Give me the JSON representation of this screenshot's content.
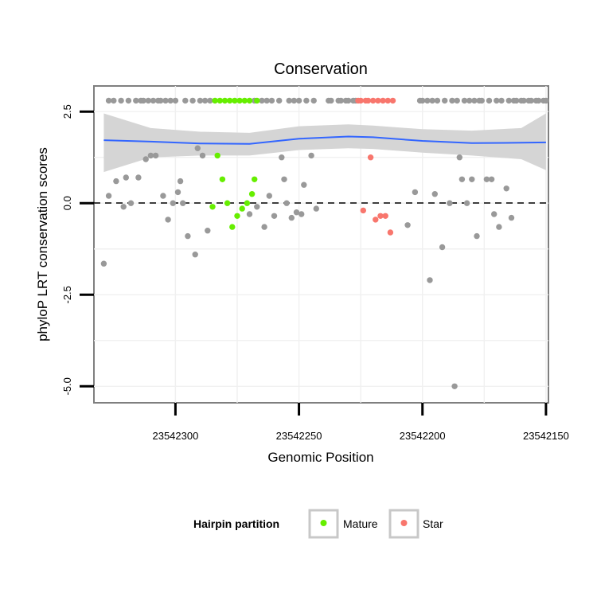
{
  "chart_data": {
    "type": "scatter",
    "title": "Conservation",
    "xlabel": "Genomic Position",
    "ylabel": "phyloP LRT conservation scores",
    "x_reversed": true,
    "xlim": [
      23542333,
      23542149
    ],
    "ylim": [
      -5.45,
      3.2
    ],
    "x_ticks": [
      23542300,
      23542250,
      23542200,
      23542150
    ],
    "x_tick_labels": [
      "23542300",
      "23542250",
      "23542200",
      "23542150"
    ],
    "y_ticks": [
      -5.0,
      -2.5,
      0.0,
      2.5
    ],
    "y_tick_labels": [
      "-5.0",
      "-2.5",
      "0.0",
      "2.5"
    ],
    "reference_line": {
      "y": 0,
      "style": "dashed"
    },
    "grid": true,
    "legend": {
      "title": "Hairpin partition",
      "placement": "bottom",
      "entries": [
        {
          "label": "Mature",
          "color": "#66ee00"
        },
        {
          "label": "Star",
          "color": "#f8766d"
        }
      ]
    },
    "colors": {
      "Other": "#999999",
      "Mature": "#66ee00",
      "Star": "#f8766d",
      "smooth_line": "#3366ff",
      "ribbon": "#d3d3d3"
    },
    "series": [
      {
        "group": "Other",
        "points": [
          [
            23542329,
            -1.65
          ],
          [
            23542327,
            2.8
          ],
          [
            23542327,
            0.2
          ],
          [
            23542325,
            2.8
          ],
          [
            23542324,
            0.6
          ],
          [
            23542322,
            2.8
          ],
          [
            23542321,
            -0.1
          ],
          [
            23542320,
            0.7
          ],
          [
            23542319,
            2.8
          ],
          [
            23542318,
            0.0
          ],
          [
            23542316,
            2.8
          ],
          [
            23542315,
            0.7
          ],
          [
            23542314,
            2.8
          ],
          [
            23542313,
            2.8
          ],
          [
            23542312,
            1.2
          ],
          [
            23542311,
            2.8
          ],
          [
            23542310,
            1.3
          ],
          [
            23542309,
            2.8
          ],
          [
            23542308,
            1.3
          ],
          [
            23542307,
            2.8
          ],
          [
            23542306,
            2.8
          ],
          [
            23542305,
            0.2
          ],
          [
            23542304,
            2.8
          ],
          [
            23542303,
            -0.45
          ],
          [
            23542302,
            2.8
          ],
          [
            23542301,
            0.0
          ],
          [
            23542300,
            2.8
          ],
          [
            23542299,
            0.3
          ],
          [
            23542298,
            0.6
          ],
          [
            23542297,
            0.0
          ],
          [
            23542296,
            2.8
          ],
          [
            23542295,
            -0.9
          ],
          [
            23542293,
            2.8
          ],
          [
            23542292,
            -1.4
          ],
          [
            23542291,
            1.5
          ],
          [
            23542290,
            2.8
          ],
          [
            23542289,
            1.3
          ],
          [
            23542288,
            2.8
          ],
          [
            23542287,
            -0.75
          ],
          [
            23542286,
            2.8
          ],
          [
            23542270,
            -0.3
          ],
          [
            23542268,
            2.8
          ],
          [
            23542267,
            -0.1
          ],
          [
            23542265,
            2.8
          ],
          [
            23542264,
            -0.65
          ],
          [
            23542263,
            2.8
          ],
          [
            23542262,
            0.2
          ],
          [
            23542261,
            2.8
          ],
          [
            23542260,
            -0.35
          ],
          [
            23542258,
            2.8
          ],
          [
            23542257,
            1.25
          ],
          [
            23542256,
            0.65
          ],
          [
            23542255,
            0.0
          ],
          [
            23542254,
            2.8
          ],
          [
            23542253,
            -0.4
          ],
          [
            23542252,
            2.8
          ],
          [
            23542251,
            -0.25
          ],
          [
            23542250,
            2.8
          ],
          [
            23542249,
            -0.3
          ],
          [
            23542248,
            0.5
          ],
          [
            23542247,
            2.8
          ],
          [
            23542245,
            1.3
          ],
          [
            23542244,
            2.8
          ],
          [
            23542243,
            -0.15
          ],
          [
            23542238,
            2.8
          ],
          [
            23542237,
            2.8
          ],
          [
            23542234,
            2.8
          ],
          [
            23542233,
            2.8
          ],
          [
            23542231,
            2.8
          ],
          [
            23542230,
            2.8
          ],
          [
            23542228,
            2.8
          ],
          [
            23542227,
            2.8
          ],
          [
            23542206,
            -0.6
          ],
          [
            23542203,
            0.3
          ],
          [
            23542201,
            2.8
          ],
          [
            23542200,
            2.8
          ],
          [
            23542198,
            2.8
          ],
          [
            23542197,
            -2.1
          ],
          [
            23542196,
            2.8
          ],
          [
            23542195,
            0.25
          ],
          [
            23542194,
            2.8
          ],
          [
            23542192,
            -1.2
          ],
          [
            23542191,
            2.8
          ],
          [
            23542189,
            0.0
          ],
          [
            23542188,
            2.8
          ],
          [
            23542187,
            -5.0
          ],
          [
            23542186,
            2.8
          ],
          [
            23542185,
            1.25
          ],
          [
            23542184,
            0.65
          ],
          [
            23542183,
            2.8
          ],
          [
            23542182,
            0.0
          ],
          [
            23542181,
            2.8
          ],
          [
            23542180,
            0.65
          ],
          [
            23542179,
            2.8
          ],
          [
            23542178,
            -0.9
          ],
          [
            23542177,
            2.8
          ],
          [
            23542176,
            2.8
          ],
          [
            23542174,
            0.65
          ],
          [
            23542173,
            2.8
          ],
          [
            23542172,
            0.65
          ],
          [
            23542171,
            -0.3
          ],
          [
            23542170,
            2.8
          ],
          [
            23542169,
            -0.65
          ],
          [
            23542168,
            2.8
          ],
          [
            23542166,
            0.4
          ],
          [
            23542165,
            2.8
          ],
          [
            23542164,
            -0.4
          ],
          [
            23542163,
            2.8
          ],
          [
            23542162,
            2.8
          ],
          [
            23542160,
            2.8
          ],
          [
            23542159,
            2.8
          ],
          [
            23542157,
            2.8
          ],
          [
            23542156,
            2.8
          ],
          [
            23542154,
            2.8
          ],
          [
            23542153,
            2.8
          ],
          [
            23542151,
            2.8
          ],
          [
            23542150,
            2.8
          ]
        ]
      },
      {
        "group": "Mature",
        "points": [
          [
            23542285,
            -0.1
          ],
          [
            23542284,
            2.8
          ],
          [
            23542283,
            1.3
          ],
          [
            23542282,
            2.8
          ],
          [
            23542281,
            0.65
          ],
          [
            23542280,
            2.8
          ],
          [
            23542279,
            0.0
          ],
          [
            23542278,
            2.8
          ],
          [
            23542277,
            -0.65
          ],
          [
            23542276,
            2.8
          ],
          [
            23542275,
            -0.35
          ],
          [
            23542274,
            2.8
          ],
          [
            23542273,
            -0.15
          ],
          [
            23542272,
            2.8
          ],
          [
            23542271,
            0.0
          ],
          [
            23542270,
            2.8
          ],
          [
            23542269,
            0.25
          ],
          [
            23542268,
            0.65
          ],
          [
            23542267,
            2.8
          ]
        ]
      },
      {
        "group": "Star",
        "points": [
          [
            23542226,
            2.8
          ],
          [
            23542225,
            2.8
          ],
          [
            23542224,
            -0.2
          ],
          [
            23542223,
            2.8
          ],
          [
            23542222,
            2.8
          ],
          [
            23542221,
            1.25
          ],
          [
            23542220,
            2.8
          ],
          [
            23542219,
            -0.45
          ],
          [
            23542218,
            2.8
          ],
          [
            23542217,
            -0.35
          ],
          [
            23542216,
            2.8
          ],
          [
            23542215,
            -0.35
          ],
          [
            23542214,
            2.8
          ],
          [
            23542213,
            -0.8
          ],
          [
            23542212,
            2.8
          ]
        ]
      }
    ],
    "smooth": {
      "x": [
        23542329,
        23542310,
        23542290,
        23542270,
        23542250,
        23542230,
        23542220,
        23542200,
        23542180,
        23542160,
        23542150
      ],
      "y": [
        1.72,
        1.68,
        1.63,
        1.62,
        1.76,
        1.82,
        1.8,
        1.7,
        1.64,
        1.65,
        1.66
      ],
      "lower": [
        0.85,
        1.25,
        1.3,
        1.3,
        1.45,
        1.5,
        1.48,
        1.38,
        1.3,
        1.2,
        0.9
      ],
      "upper": [
        2.45,
        2.05,
        1.95,
        1.92,
        2.1,
        2.15,
        2.12,
        2.02,
        1.98,
        2.05,
        2.45
      ]
    }
  }
}
